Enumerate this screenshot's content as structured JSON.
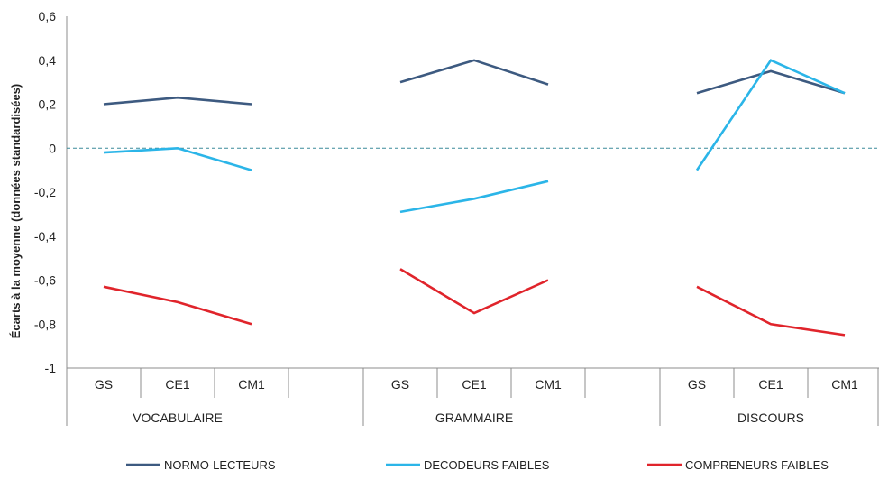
{
  "chart_data": {
    "type": "line",
    "ylabel": "Écarts à la moyenne (données standardisées)",
    "ylim": [
      -1,
      0.6
    ],
    "yticks": [
      "0,6",
      "0,4",
      "0,2",
      "0",
      "-0,2",
      "-0,4",
      "-0,6",
      "-0,8",
      "-1"
    ],
    "reference_line": 0,
    "groups": [
      {
        "name": "VOCABULAIRE",
        "categories": [
          "GS",
          "CE1",
          "CM1"
        ]
      },
      {
        "name": "GRAMMAIRE",
        "categories": [
          "GS",
          "CE1",
          "CM1"
        ]
      },
      {
        "name": "DISCOURS",
        "categories": [
          "GS",
          "CE1",
          "CM1"
        ]
      }
    ],
    "series": [
      {
        "name": "NORMO-LECTEURS",
        "color": "#3d5a80",
        "values": [
          [
            0.2,
            0.23,
            0.2
          ],
          [
            0.3,
            0.4,
            0.29
          ],
          [
            0.25,
            0.35,
            0.25
          ]
        ]
      },
      {
        "name": "DECODEURS FAIBLES",
        "color": "#2bb5e8",
        "values": [
          [
            -0.02,
            0.0,
            -0.1
          ],
          [
            -0.29,
            -0.23,
            -0.15
          ],
          [
            -0.1,
            0.4,
            0.25
          ]
        ]
      },
      {
        "name": "COMPRENEURS FAIBLES",
        "color": "#e0242b",
        "values": [
          [
            -0.63,
            -0.7,
            -0.8
          ],
          [
            -0.55,
            -0.75,
            -0.6
          ],
          [
            -0.63,
            -0.8,
            -0.85
          ]
        ]
      }
    ],
    "legend_position": "bottom",
    "grid": false
  }
}
